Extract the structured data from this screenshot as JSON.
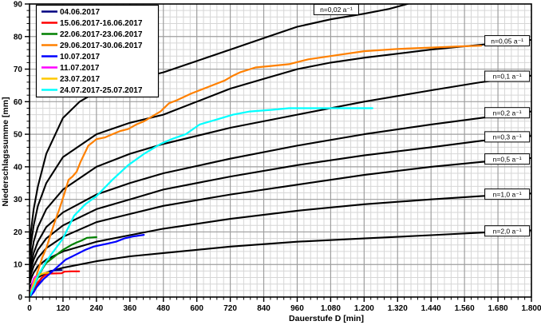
{
  "chart_data": {
    "type": "line",
    "title": "",
    "xlabel": "Dauerstufe D [min]",
    "ylabel": "Niederschlagssumme [mm]",
    "xlim": [
      0,
      1800
    ],
    "ylim": [
      0,
      90
    ],
    "grid": {
      "x_minor_step": 24,
      "x_major_step": 120,
      "y_minor_step": 2,
      "y_major_step": 10,
      "minor_color": "#d6d6d6",
      "major_color": "#9e9e9e",
      "frame_color": "#000000"
    },
    "x_ticks": [
      {
        "value": 0,
        "label": "0"
      },
      {
        "value": 120,
        "label": "120"
      },
      {
        "value": 240,
        "label": "240"
      },
      {
        "value": 360,
        "label": "360"
      },
      {
        "value": 480,
        "label": "480"
      },
      {
        "value": 600,
        "label": "600"
      },
      {
        "value": 720,
        "label": "720"
      },
      {
        "value": 840,
        "label": "840"
      },
      {
        "value": 960,
        "label": "960"
      },
      {
        "value": 1080,
        "label": "1.080"
      },
      {
        "value": 1200,
        "label": "1.200"
      },
      {
        "value": 1320,
        "label": "1.320"
      },
      {
        "value": 1440,
        "label": "1.440"
      },
      {
        "value": 1560,
        "label": "1.560"
      },
      {
        "value": 1680,
        "label": "1.680"
      },
      {
        "value": 1800,
        "label": "1.800"
      }
    ],
    "y_ticks": [
      {
        "value": 0,
        "label": "0"
      },
      {
        "value": 10,
        "label": "10"
      },
      {
        "value": 20,
        "label": "20"
      },
      {
        "value": 30,
        "label": "30"
      },
      {
        "value": 40,
        "label": "40"
      },
      {
        "value": 50,
        "label": "50"
      },
      {
        "value": 60,
        "label": "60"
      },
      {
        "value": 70,
        "label": "70"
      },
      {
        "value": 80,
        "label": "80"
      },
      {
        "value": 90,
        "label": "90"
      }
    ],
    "reference_curves": [
      {
        "id": "n-0-02",
        "label": "n=0,02 a⁻¹",
        "color": "#000000",
        "label_at": [
          1100,
          88.3
        ],
        "points": [
          [
            3,
            16
          ],
          [
            5,
            20
          ],
          [
            15,
            27
          ],
          [
            30,
            34
          ],
          [
            60,
            44
          ],
          [
            120,
            55
          ],
          [
            180,
            60
          ],
          [
            240,
            63
          ],
          [
            300,
            65
          ],
          [
            360,
            66.5
          ],
          [
            480,
            69
          ],
          [
            600,
            72.5
          ],
          [
            720,
            76
          ],
          [
            840,
            79.5
          ],
          [
            960,
            83
          ],
          [
            1080,
            85.3
          ],
          [
            1200,
            87
          ],
          [
            1290,
            88.5
          ],
          [
            1363,
            90.2
          ]
        ]
      },
      {
        "id": "n-0-05",
        "label": "n=0,05 a⁻¹",
        "color": "#000000",
        "label_at": [
          1713,
          78.7
        ],
        "points": [
          [
            3,
            13
          ],
          [
            5,
            16
          ],
          [
            15,
            22
          ],
          [
            30,
            28
          ],
          [
            60,
            35
          ],
          [
            120,
            43
          ],
          [
            240,
            50
          ],
          [
            360,
            53.5
          ],
          [
            480,
            56
          ],
          [
            600,
            60
          ],
          [
            720,
            64
          ],
          [
            840,
            67
          ],
          [
            960,
            70
          ],
          [
            1080,
            72
          ],
          [
            1200,
            73.5
          ],
          [
            1440,
            76
          ],
          [
            1620,
            77.5
          ],
          [
            1800,
            79
          ]
        ]
      },
      {
        "id": "n-0-1",
        "label": "n=0,1 a⁻¹",
        "color": "#000000",
        "label_at": [
          1713,
          67.8
        ],
        "points": [
          [
            3,
            10
          ],
          [
            5,
            12
          ],
          [
            15,
            17
          ],
          [
            30,
            21.5
          ],
          [
            60,
            27
          ],
          [
            120,
            33
          ],
          [
            240,
            40
          ],
          [
            360,
            44
          ],
          [
            480,
            47
          ],
          [
            720,
            52
          ],
          [
            960,
            56
          ],
          [
            1200,
            60
          ],
          [
            1440,
            63.5
          ],
          [
            1620,
            66
          ],
          [
            1800,
            68
          ]
        ]
      },
      {
        "id": "n-0-2",
        "label": "n=0,2 a⁻¹",
        "color": "#000000",
        "label_at": [
          1713,
          56.6
        ],
        "points": [
          [
            3,
            8
          ],
          [
            5,
            10
          ],
          [
            15,
            13.5
          ],
          [
            30,
            17
          ],
          [
            60,
            21.5
          ],
          [
            120,
            26
          ],
          [
            240,
            31.5
          ],
          [
            360,
            35
          ],
          [
            480,
            38
          ],
          [
            720,
            42.5
          ],
          [
            960,
            46.5
          ],
          [
            1200,
            50
          ],
          [
            1440,
            53
          ],
          [
            1620,
            55
          ],
          [
            1800,
            57
          ]
        ]
      },
      {
        "id": "n-0-3",
        "label": "n=0,3 a⁻¹",
        "color": "#000000",
        "label_at": [
          1713,
          49.2
        ],
        "points": [
          [
            3,
            7
          ],
          [
            5,
            8.5
          ],
          [
            15,
            11.5
          ],
          [
            30,
            14.5
          ],
          [
            60,
            18
          ],
          [
            120,
            22
          ],
          [
            240,
            27
          ],
          [
            360,
            30
          ],
          [
            480,
            33
          ],
          [
            720,
            37
          ],
          [
            960,
            40.5
          ],
          [
            1200,
            43.5
          ],
          [
            1440,
            46
          ],
          [
            1620,
            48
          ],
          [
            1800,
            49.5
          ]
        ]
      },
      {
        "id": "n-0-5",
        "label": "n=0,5 a⁻¹",
        "color": "#000000",
        "label_at": [
          1713,
          42.4
        ],
        "points": [
          [
            3,
            5.5
          ],
          [
            5,
            7
          ],
          [
            15,
            9.5
          ],
          [
            30,
            12
          ],
          [
            60,
            15
          ],
          [
            120,
            18.5
          ],
          [
            240,
            23
          ],
          [
            360,
            25.5
          ],
          [
            480,
            28
          ],
          [
            720,
            31.5
          ],
          [
            960,
            34.5
          ],
          [
            1200,
            37.5
          ],
          [
            1440,
            40
          ],
          [
            1620,
            41.5
          ],
          [
            1800,
            42.7
          ]
        ]
      },
      {
        "id": "n-1-0",
        "label": "n=1,0 a⁻¹",
        "color": "#000000",
        "label_at": [
          1713,
          31.6
        ],
        "points": [
          [
            3,
            4.5
          ],
          [
            5,
            5.5
          ],
          [
            15,
            7.5
          ],
          [
            30,
            9.5
          ],
          [
            60,
            11.5
          ],
          [
            120,
            14
          ],
          [
            240,
            17
          ],
          [
            360,
            19
          ],
          [
            480,
            21
          ],
          [
            720,
            24
          ],
          [
            960,
            26.5
          ],
          [
            1200,
            28.5
          ],
          [
            1440,
            30
          ],
          [
            1620,
            31
          ],
          [
            1800,
            31.8
          ]
        ]
      },
      {
        "id": "n-2-0",
        "label": "n=2,0 a⁻¹",
        "color": "#000000",
        "label_at": [
          1713,
          20.3
        ],
        "points": [
          [
            3,
            2.8
          ],
          [
            5,
            3.5
          ],
          [
            15,
            5
          ],
          [
            30,
            6
          ],
          [
            60,
            7.5
          ],
          [
            120,
            9
          ],
          [
            240,
            11
          ],
          [
            360,
            12.5
          ],
          [
            480,
            13.5
          ],
          [
            720,
            15.5
          ],
          [
            960,
            17
          ],
          [
            1200,
            18
          ],
          [
            1440,
            19
          ],
          [
            1620,
            19.8
          ],
          [
            1800,
            20.5
          ]
        ]
      }
    ],
    "series": [
      {
        "id": "event-04-06-2017",
        "name": "04.06.2017",
        "color": "#000080",
        "points": [
          [
            0,
            0
          ],
          [
            10,
            1.5
          ],
          [
            20,
            3
          ],
          [
            30,
            4.2
          ],
          [
            45,
            6
          ],
          [
            60,
            7.3
          ],
          [
            75,
            8
          ],
          [
            90,
            8.2
          ],
          [
            115,
            8.3
          ]
        ]
      },
      {
        "id": "event-15-06-2017",
        "name": "15.06.2017-16.06.2017",
        "color": "#ff0000",
        "points": [
          [
            0,
            0
          ],
          [
            15,
            2.5
          ],
          [
            30,
            4.5
          ],
          [
            45,
            6
          ],
          [
            60,
            7
          ],
          [
            70,
            7.2
          ],
          [
            115,
            7.3
          ],
          [
            125,
            7.8
          ],
          [
            150,
            7.9
          ],
          [
            178,
            7.9
          ]
        ]
      },
      {
        "id": "event-22-06-2017",
        "name": "22.06.2017-23.06.2017",
        "color": "#008000",
        "points": [
          [
            0,
            0
          ],
          [
            15,
            3
          ],
          [
            30,
            6
          ],
          [
            45,
            8.5
          ],
          [
            60,
            10.5
          ],
          [
            90,
            12.5
          ],
          [
            120,
            14.5
          ],
          [
            150,
            16
          ],
          [
            170,
            16.8
          ],
          [
            185,
            17.3
          ],
          [
            206,
            18.2
          ],
          [
            240,
            18.4
          ]
        ]
      },
      {
        "id": "event-29-06-2017",
        "name": "29.06.2017-30.06.2017",
        "color": "#ff8000",
        "points": [
          [
            0,
            0
          ],
          [
            10,
            2
          ],
          [
            20,
            5
          ],
          [
            30,
            8
          ],
          [
            45,
            12
          ],
          [
            60,
            15
          ],
          [
            75,
            19
          ],
          [
            90,
            23
          ],
          [
            107,
            27
          ],
          [
            126,
            32
          ],
          [
            140,
            36
          ],
          [
            154,
            37
          ],
          [
            169,
            38.5
          ],
          [
            183,
            41.5
          ],
          [
            197,
            44
          ],
          [
            211,
            46.5
          ],
          [
            226,
            47.5
          ],
          [
            240,
            48.5
          ],
          [
            270,
            49
          ],
          [
            297,
            50
          ],
          [
            326,
            51
          ],
          [
            354,
            51.6
          ],
          [
            383,
            53
          ],
          [
            411,
            54
          ],
          [
            440,
            55.5
          ],
          [
            470,
            57
          ],
          [
            500,
            59.5
          ],
          [
            530,
            60.5
          ],
          [
            580,
            62.5
          ],
          [
            640,
            64.5
          ],
          [
            700,
            66.5
          ],
          [
            730,
            68
          ],
          [
            755,
            69
          ],
          [
            810,
            70.5
          ],
          [
            870,
            71
          ],
          [
            930,
            71.5
          ],
          [
            1000,
            73
          ],
          [
            1080,
            74
          ],
          [
            1200,
            75.5
          ],
          [
            1320,
            76.2
          ],
          [
            1440,
            76.6
          ],
          [
            1550,
            77
          ],
          [
            1620,
            77.2
          ]
        ]
      },
      {
        "id": "event-10-07-2017",
        "name": "10.07.2017",
        "color": "#0000ff",
        "points": [
          [
            0,
            0
          ],
          [
            15,
            1.5
          ],
          [
            25,
            3
          ],
          [
            50,
            5.5
          ],
          [
            70,
            7
          ],
          [
            90,
            8.5
          ],
          [
            110,
            10
          ],
          [
            130,
            11.5
          ],
          [
            170,
            13.2
          ],
          [
            200,
            14.5
          ],
          [
            230,
            15.5
          ],
          [
            280,
            16.4
          ],
          [
            310,
            17
          ],
          [
            340,
            18
          ],
          [
            370,
            18.6
          ],
          [
            410,
            19.1
          ]
        ]
      },
      {
        "id": "event-11-07-2017",
        "name": "11.07.2017",
        "color": "#ff00ff",
        "points": [
          [
            0,
            0
          ],
          [
            5,
            2
          ],
          [
            10,
            4
          ],
          [
            15,
            5.5
          ],
          [
            20,
            6.2
          ],
          [
            28,
            6.5
          ]
        ]
      },
      {
        "id": "event-23-07-2017",
        "name": "23.07.2017",
        "color": "#ffc800",
        "points": [
          [
            0,
            0
          ],
          [
            10,
            3
          ],
          [
            20,
            5.5
          ],
          [
            30,
            6.5
          ],
          [
            40,
            7
          ],
          [
            55,
            7.4
          ],
          [
            68,
            7.5
          ]
        ]
      },
      {
        "id": "event-24-07-2017",
        "name": "24.07.2017-25.07.2017",
        "color": "#00ffff",
        "points": [
          [
            0,
            0
          ],
          [
            10,
            2
          ],
          [
            20,
            4
          ],
          [
            30,
            6.5
          ],
          [
            60,
            11
          ],
          [
            90,
            14.5
          ],
          [
            120,
            18
          ],
          [
            160,
            25
          ],
          [
            200,
            28.5
          ],
          [
            240,
            31
          ],
          [
            297,
            36
          ],
          [
            354,
            40.5
          ],
          [
            411,
            44
          ],
          [
            470,
            47
          ],
          [
            510,
            48.5
          ],
          [
            560,
            50
          ],
          [
            610,
            53
          ],
          [
            670,
            54.5
          ],
          [
            730,
            56
          ],
          [
            790,
            57
          ],
          [
            870,
            57.5
          ],
          [
            930,
            58
          ],
          [
            1000,
            58
          ],
          [
            1230,
            58
          ]
        ]
      }
    ],
    "legend": {
      "position": "top-left",
      "border_color": "#000000",
      "background": "#ffffff"
    }
  }
}
